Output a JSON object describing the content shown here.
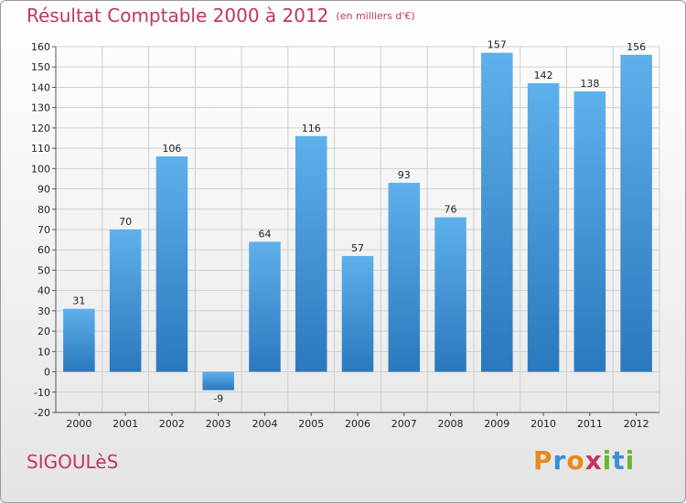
{
  "chart_data": {
    "type": "bar",
    "title": "Résultat Comptable 2000 à 2012",
    "subtitle": "(en milliers d'€)",
    "categories": [
      "2000",
      "2001",
      "2002",
      "2003",
      "2004",
      "2005",
      "2006",
      "2007",
      "2008",
      "2009",
      "2010",
      "2011",
      "2012"
    ],
    "values": [
      31,
      70,
      106,
      -9,
      64,
      116,
      57,
      93,
      76,
      157,
      142,
      138,
      156
    ],
    "ylim": [
      -20,
      160
    ],
    "ytick_step": 10,
    "grid": true,
    "xlabel": "",
    "ylabel": ""
  },
  "footer": {
    "town": "SIGOULèS",
    "brand_letters": [
      "P",
      "r",
      "o",
      "x",
      "i",
      "t",
      "i"
    ],
    "brand_colors": [
      "#e8891c",
      "#3b8fd6",
      "#e8891c",
      "#c0365f",
      "#6bb52e",
      "#3b8fd6",
      "#6bb52e"
    ]
  },
  "colors": {
    "accent": "#c0365f",
    "bar_top": "#5eb0ec",
    "bar_bottom": "#2a78bd",
    "grid": "#cfcfcf"
  }
}
